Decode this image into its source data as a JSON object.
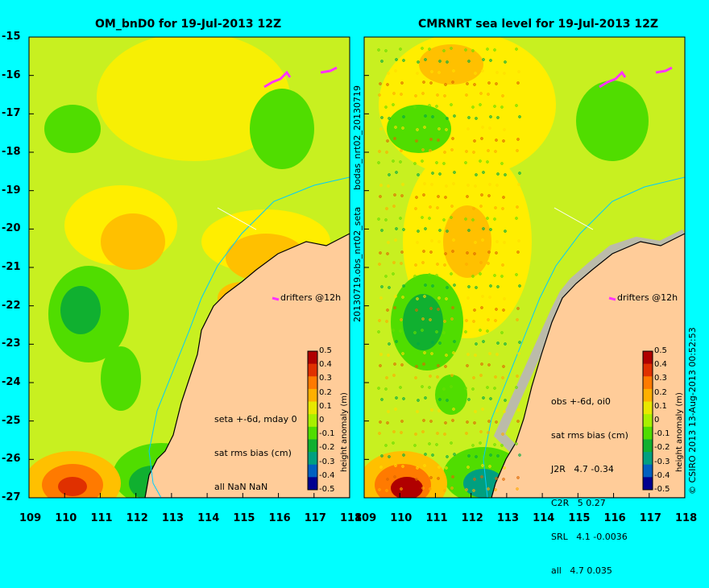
{
  "left_panel": {
    "title": "OM_bnD0 for 19-Jul-2013 12Z",
    "side_label": "bodas_nrt02_20130719",
    "drifters_label": "drifters @12h",
    "info_lines": [
      "seta +-6d, mday 0",
      "sat rms bias (cm)",
      "all NaN NaN"
    ]
  },
  "right_panel": {
    "title": "CMRNRT sea level  for 19-Jul-2013 12Z",
    "side_label": "20130719.obs_nrt02_seta",
    "drifters_label": "drifters @12h",
    "info_lines": [
      "obs +-6d, oi0",
      "sat rms bias (cm)",
      "J2R   4.7 -0.34",
      "C2R   5 0.27",
      "SRL   4.1 -0.0036",
      "all   4.7 0.035"
    ]
  },
  "copyright": "© CSIRO 2013   13-Aug-2013 00:52:53",
  "y_ticks": [
    "-15",
    "-16",
    "-17",
    "-18",
    "-19",
    "-20",
    "-21",
    "-22",
    "-23",
    "-24",
    "-25",
    "-26",
    "-27"
  ],
  "x_ticks": [
    "109",
    "110",
    "111",
    "112",
    "113",
    "114",
    "115",
    "116",
    "117",
    "118"
  ],
  "colorbar": {
    "label": "height anomaly (m)",
    "ticks": [
      "0.5",
      "0.4",
      "0.3",
      "0.2",
      "0.1",
      "0",
      "-0.1",
      "-0.2",
      "-0.3",
      "-0.4",
      "-0.5"
    ],
    "colors": [
      "#b00000",
      "#e03000",
      "#ff7a00",
      "#ffb000",
      "#e8e800",
      "#a8f000",
      "#50dd00",
      "#10b030",
      "#00a080",
      "#0060c0",
      "#000090"
    ]
  },
  "colors": {
    "background": "#00ffff",
    "land": "#ffcc99",
    "coast": "#000000",
    "drifter": "#ff33ff",
    "base_sea": "#c8f020"
  }
}
